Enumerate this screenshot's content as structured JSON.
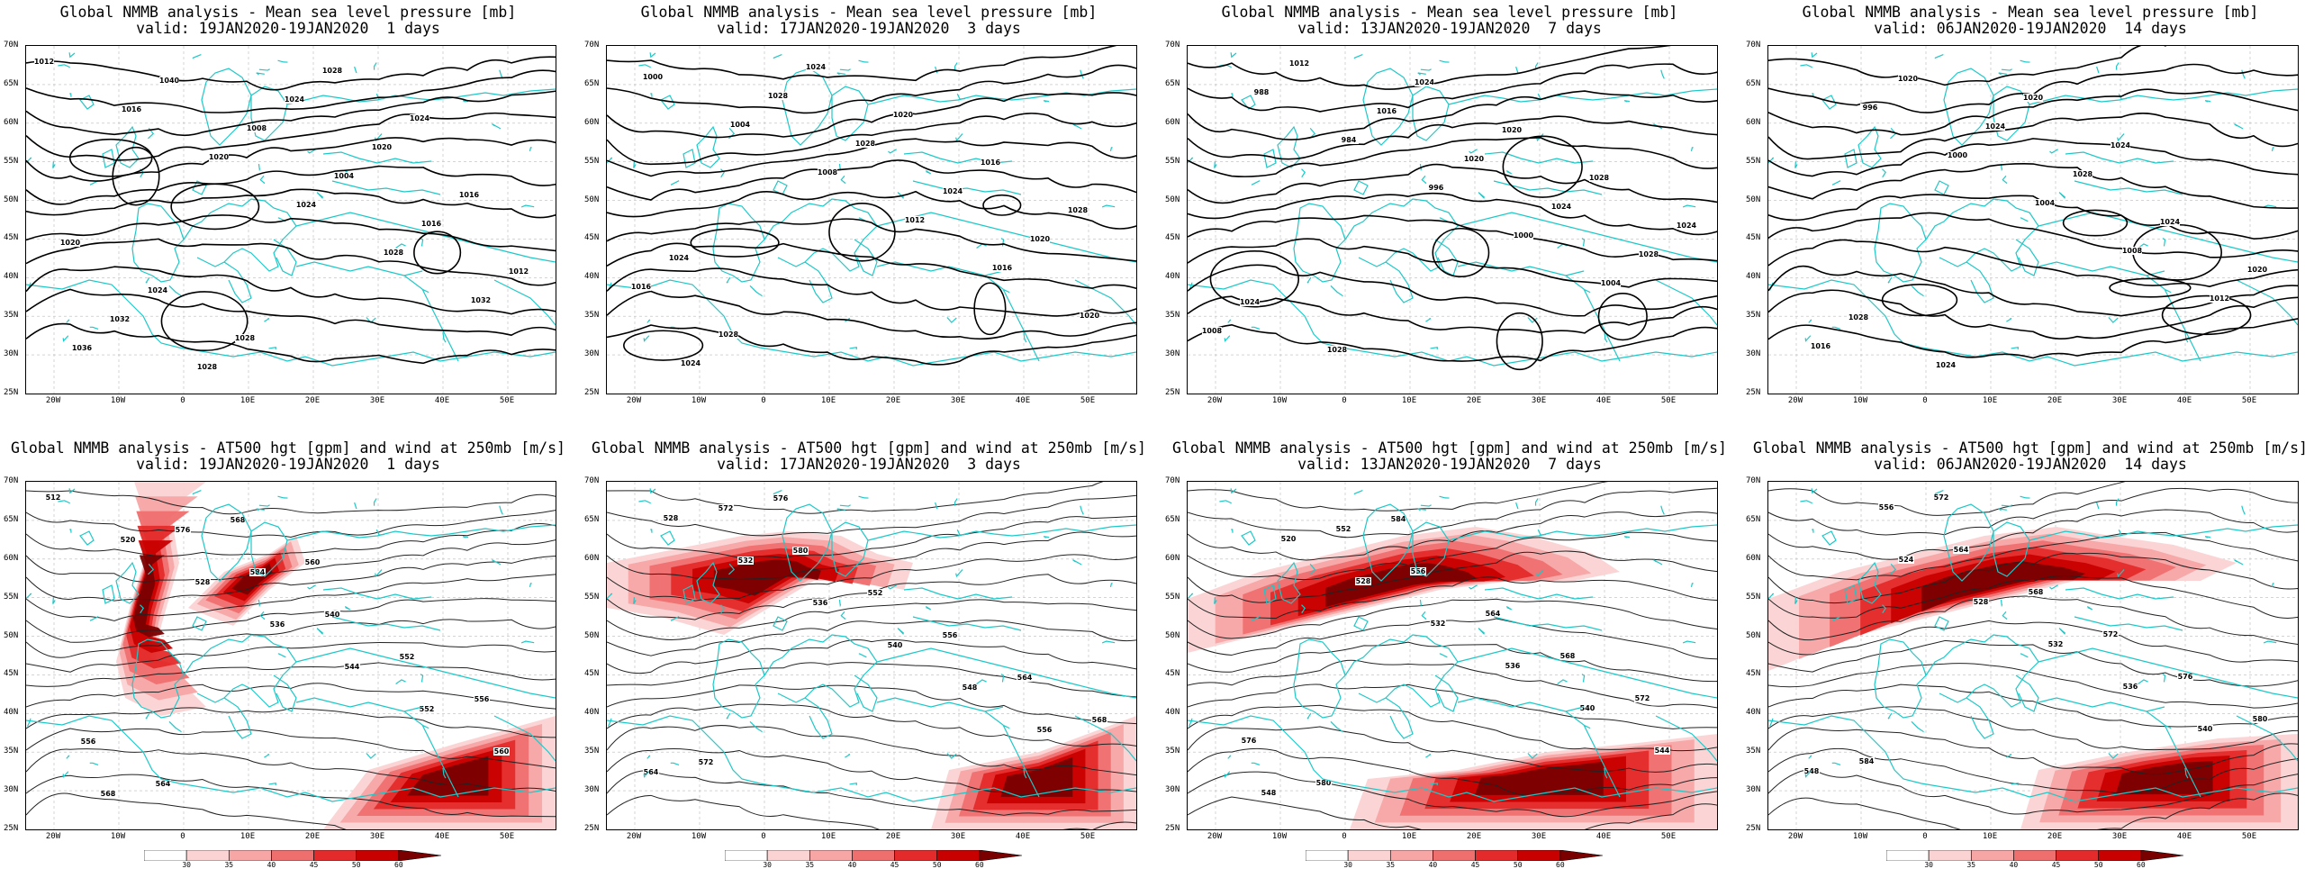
{
  "panels_top": [
    {
      "title": "Global NMMB analysis - Mean sea level pressure [mb]",
      "valid": "valid: 19JAN2020-19JAN2020  1 days"
    },
    {
      "title": "Global NMMB analysis - Mean sea level pressure [mb]",
      "valid": "valid: 17JAN2020-19JAN2020  3 days"
    },
    {
      "title": "Global NMMB analysis - Mean sea level pressure [mb]",
      "valid": "valid: 13JAN2020-19JAN2020  7 days"
    },
    {
      "title": "Global NMMB analysis - Mean sea level pressure [mb]",
      "valid": "valid: 06JAN2020-19JAN2020  14 days"
    }
  ],
  "panels_bottom": [
    {
      "title": "Global NMMB analysis - AT500 hgt [gpm] and wind at 250mb [m/s]",
      "valid": "valid: 19JAN2020-19JAN2020  1 days"
    },
    {
      "title": "Global NMMB analysis - AT500 hgt [gpm] and wind at 250mb [m/s]",
      "valid": "valid: 17JAN2020-19JAN2020  3 days"
    },
    {
      "title": "Global NMMB analysis - AT500 hgt [gpm] and wind at 250mb [m/s]",
      "valid": "valid: 13JAN2020-19JAN2020  7 days"
    },
    {
      "title": "Global NMMB analysis - AT500 hgt [gpm] and wind at 250mb [m/s]",
      "valid": "valid: 06JAN2020-19JAN2020  14 days"
    }
  ],
  "lat_labels": [
    "70N",
    "65N",
    "60N",
    "55N",
    "50N",
    "45N",
    "40N",
    "35N",
    "30N",
    "25N"
  ],
  "lon_labels": [
    "20W",
    "10W",
    "0",
    "10E",
    "20E",
    "30E",
    "40E",
    "50E"
  ],
  "colorbar": {
    "labels": [
      "30",
      "35",
      "40",
      "45",
      "50",
      "60"
    ],
    "colors": [
      "#ffffff",
      "#fbd3d3",
      "#f7a5a5",
      "#ef6f6f",
      "#e42a2a",
      "#c80000",
      "#7a0000"
    ]
  },
  "mslp_contour_labels": [
    [
      "1012",
      "1016",
      "1020",
      "1024",
      "1028",
      "1032",
      "1036",
      "1040",
      "1008",
      "1004",
      "1016",
      "1012",
      "1032",
      "1028",
      "1024",
      "1020",
      "1016",
      "1020",
      "1024",
      "1028",
      "1028",
      "1024"
    ],
    [
      "1000",
      "1004",
      "1008",
      "1012",
      "1016",
      "1020",
      "1024",
      "1028",
      "1028",
      "1024",
      "1020",
      "1016",
      "1028",
      "1024",
      "1020",
      "1016",
      "1028",
      "1024"
    ],
    [
      "988",
      "984",
      "996",
      "1000",
      "1004",
      "1008",
      "1012",
      "1016",
      "1020",
      "1024",
      "1028",
      "1024",
      "1028",
      "1024",
      "1020",
      "1028",
      "1024"
    ],
    [
      "996",
      "1000",
      "1004",
      "1008",
      "1012",
      "1016",
      "1020",
      "1024",
      "1028",
      "1024",
      "1020",
      "1028",
      "1024",
      "1020",
      "1024"
    ]
  ],
  "z500_contour_labels": [
    [
      "512",
      "520",
      "528",
      "536",
      "544",
      "552",
      "560",
      "568",
      "576",
      "584",
      "540",
      "552",
      "556",
      "556",
      "564",
      "568",
      "560"
    ],
    [
      "528",
      "532",
      "536",
      "540",
      "548",
      "556",
      "564",
      "572",
      "580",
      "552",
      "556",
      "564",
      "568",
      "572",
      "576"
    ],
    [
      "520",
      "528",
      "532",
      "536",
      "540",
      "544",
      "548",
      "552",
      "556",
      "564",
      "568",
      "572",
      "576",
      "580",
      "584"
    ],
    [
      "524",
      "528",
      "532",
      "536",
      "540",
      "548",
      "556",
      "564",
      "568",
      "572",
      "576",
      "580",
      "584",
      "572"
    ]
  ]
}
